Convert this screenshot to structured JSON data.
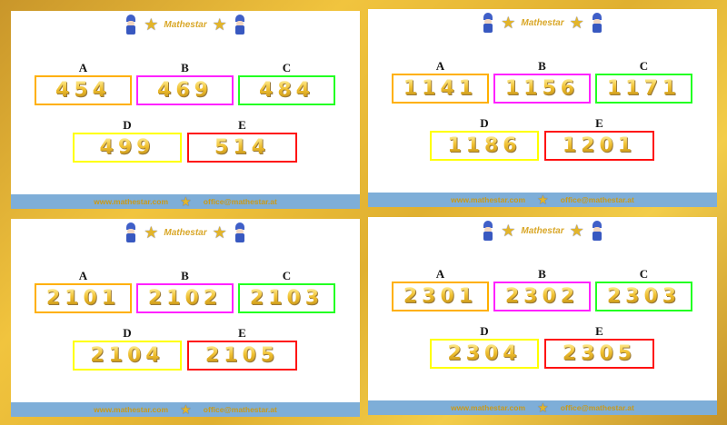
{
  "brand": "Mathestar",
  "footer": {
    "website": "www.mathestar.com",
    "email": "office@mathestar.at"
  },
  "colors": {
    "A": "#ffb000",
    "B": "#ff22ff",
    "C": "#22ff22",
    "D": "#ffff00",
    "E": "#ff1010"
  },
  "panels": [
    {
      "options": [
        {
          "label": "A",
          "value": "454"
        },
        {
          "label": "B",
          "value": "469"
        },
        {
          "label": "C",
          "value": "484"
        },
        {
          "label": "D",
          "value": "499"
        },
        {
          "label": "E",
          "value": "514"
        }
      ]
    },
    {
      "options": [
        {
          "label": "A",
          "value": "1141"
        },
        {
          "label": "B",
          "value": "1156"
        },
        {
          "label": "C",
          "value": "1171"
        },
        {
          "label": "D",
          "value": "1186"
        },
        {
          "label": "E",
          "value": "1201"
        }
      ]
    },
    {
      "options": [
        {
          "label": "A",
          "value": "2101"
        },
        {
          "label": "B",
          "value": "2102"
        },
        {
          "label": "C",
          "value": "2103"
        },
        {
          "label": "D",
          "value": "2104"
        },
        {
          "label": "E",
          "value": "2105"
        }
      ]
    },
    {
      "options": [
        {
          "label": "A",
          "value": "2301"
        },
        {
          "label": "B",
          "value": "2302"
        },
        {
          "label": "C",
          "value": "2303"
        },
        {
          "label": "D",
          "value": "2304"
        },
        {
          "label": "E",
          "value": "2305"
        }
      ]
    }
  ]
}
